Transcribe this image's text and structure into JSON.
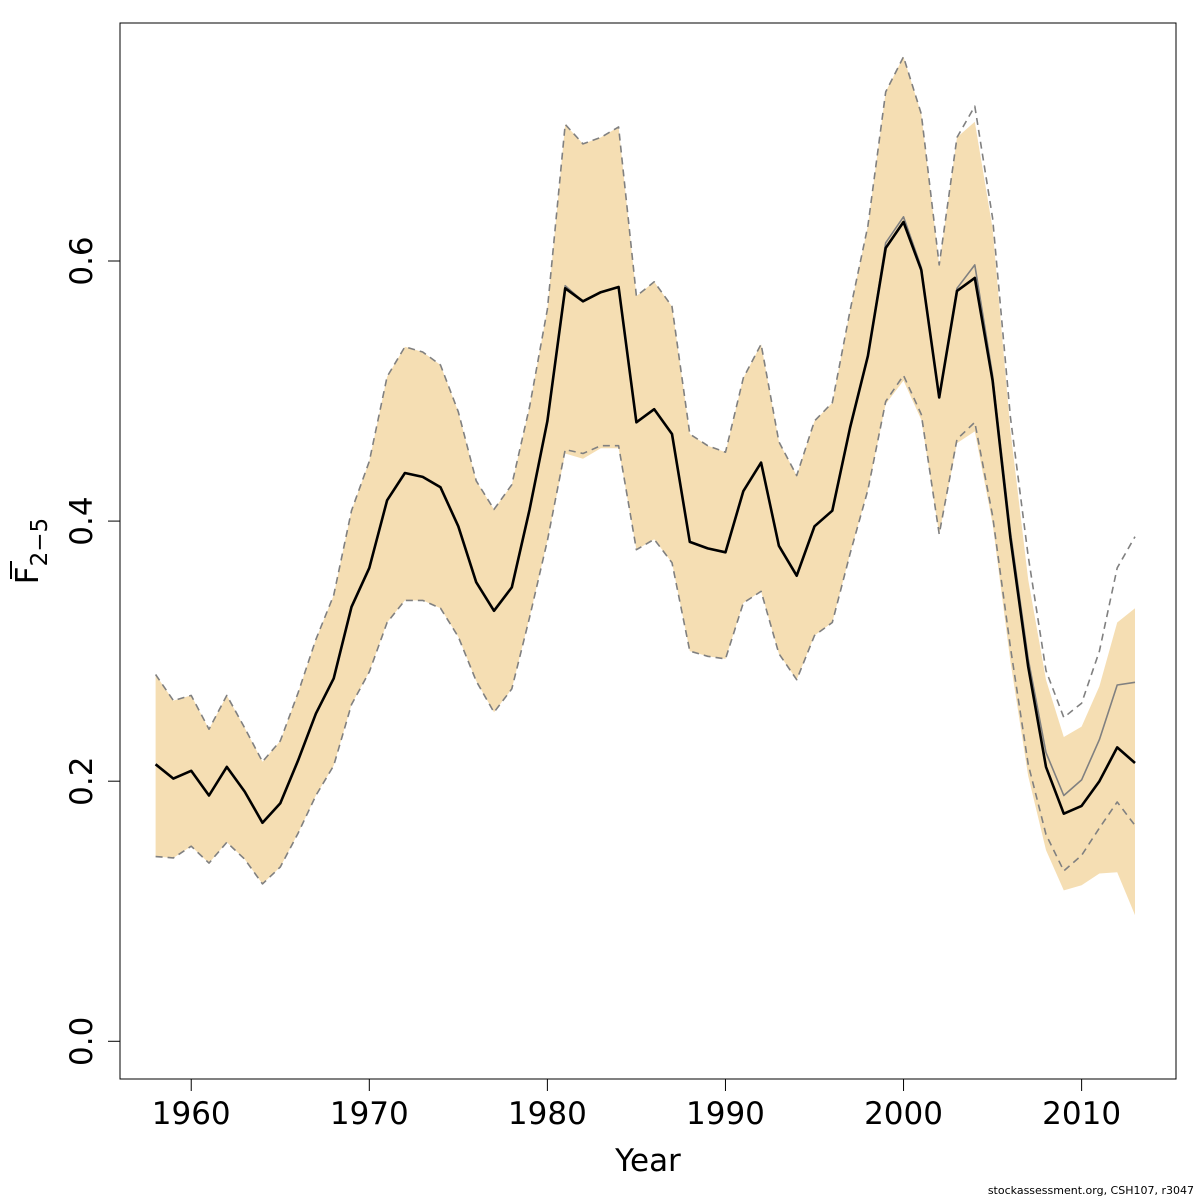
{
  "chart_data": {
    "type": "line",
    "title": "",
    "xlabel": "Year",
    "ylabel_main": "F",
    "ylabel_sub": "2−5",
    "xlim": [
      1956,
      2015.3
    ],
    "ylim": [
      -0.029,
      0.783
    ],
    "x_ticks": [
      1960,
      1970,
      1980,
      1990,
      2000,
      2010
    ],
    "y_ticks": [
      0.0,
      0.2,
      0.4,
      0.6
    ],
    "y_tick_labels": [
      "0.0",
      "0.2",
      "0.4",
      "0.6"
    ],
    "x": [
      1958,
      1959,
      1960,
      1961,
      1962,
      1963,
      1964,
      1965,
      1966,
      1967,
      1968,
      1969,
      1970,
      1971,
      1972,
      1973,
      1974,
      1975,
      1976,
      1977,
      1978,
      1979,
      1980,
      1981,
      1982,
      1983,
      1984,
      1985,
      1986,
      1987,
      1988,
      1989,
      1990,
      1991,
      1992,
      1993,
      1994,
      1995,
      1996,
      1997,
      1998,
      1999,
      2000,
      2001,
      2002,
      2003,
      2004,
      2005,
      2006,
      2007,
      2008,
      2009,
      2010,
      2011,
      2012,
      2013
    ],
    "series": [
      {
        "role": "estimate",
        "color": "#000000",
        "values": [
          0.213,
          0.202,
          0.208,
          0.189,
          0.211,
          0.192,
          0.168,
          0.183,
          0.216,
          0.252,
          0.279,
          0.334,
          0.364,
          0.416,
          0.437,
          0.434,
          0.426,
          0.396,
          0.353,
          0.331,
          0.349,
          0.409,
          0.477,
          0.579,
          0.569,
          0.576,
          0.58,
          0.476,
          0.486,
          0.467,
          0.384,
          0.379,
          0.376,
          0.423,
          0.445,
          0.381,
          0.358,
          0.396,
          0.408,
          0.472,
          0.527,
          0.61,
          0.63,
          0.593,
          0.495,
          0.577,
          0.587,
          0.508,
          0.387,
          0.288,
          0.211,
          0.175,
          0.181,
          0.2,
          0.226,
          0.214
        ]
      },
      {
        "role": "previous-estimate",
        "color": "#808080",
        "values": [
          0.213,
          0.202,
          0.208,
          0.189,
          0.211,
          0.192,
          0.168,
          0.183,
          0.216,
          0.252,
          0.279,
          0.334,
          0.364,
          0.416,
          0.437,
          0.434,
          0.426,
          0.396,
          0.353,
          0.331,
          0.349,
          0.409,
          0.477,
          0.581,
          0.569,
          0.576,
          0.58,
          0.476,
          0.486,
          0.467,
          0.384,
          0.379,
          0.376,
          0.423,
          0.445,
          0.381,
          0.358,
          0.396,
          0.408,
          0.472,
          0.527,
          0.614,
          0.634,
          0.595,
          0.495,
          0.579,
          0.597,
          0.512,
          0.392,
          0.294,
          0.222,
          0.189,
          0.201,
          0.232,
          0.274,
          0.276
        ]
      },
      {
        "role": "previous-upper",
        "color": "#808080",
        "values": [
          0.282,
          0.262,
          0.266,
          0.24,
          0.266,
          0.241,
          0.215,
          0.231,
          0.268,
          0.309,
          0.343,
          0.408,
          0.446,
          0.511,
          0.534,
          0.53,
          0.52,
          0.484,
          0.431,
          0.409,
          0.428,
          0.488,
          0.563,
          0.705,
          0.69,
          0.695,
          0.703,
          0.573,
          0.584,
          0.565,
          0.467,
          0.458,
          0.453,
          0.51,
          0.536,
          0.461,
          0.435,
          0.477,
          0.491,
          0.562,
          0.627,
          0.73,
          0.757,
          0.713,
          0.597,
          0.695,
          0.719,
          0.633,
          0.48,
          0.373,
          0.285,
          0.249,
          0.26,
          0.3,
          0.364,
          0.388
        ]
      },
      {
        "role": "previous-lower",
        "color": "#808080",
        "values": [
          0.142,
          0.141,
          0.15,
          0.137,
          0.153,
          0.14,
          0.121,
          0.134,
          0.16,
          0.189,
          0.212,
          0.259,
          0.284,
          0.322,
          0.339,
          0.339,
          0.333,
          0.311,
          0.277,
          0.253,
          0.271,
          0.326,
          0.385,
          0.455,
          0.452,
          0.458,
          0.458,
          0.378,
          0.386,
          0.368,
          0.3,
          0.296,
          0.294,
          0.337,
          0.346,
          0.298,
          0.278,
          0.312,
          0.322,
          0.375,
          0.424,
          0.492,
          0.512,
          0.482,
          0.39,
          0.463,
          0.476,
          0.404,
          0.303,
          0.213,
          0.159,
          0.131,
          0.143,
          0.164,
          0.184,
          0.166
        ]
      }
    ],
    "band": {
      "role": "confidence-interval",
      "color": "#f5deb3",
      "upper": [
        0.282,
        0.262,
        0.266,
        0.24,
        0.266,
        0.241,
        0.215,
        0.231,
        0.268,
        0.309,
        0.343,
        0.408,
        0.446,
        0.511,
        0.534,
        0.53,
        0.52,
        0.484,
        0.431,
        0.409,
        0.428,
        0.488,
        0.563,
        0.705,
        0.69,
        0.695,
        0.703,
        0.573,
        0.584,
        0.565,
        0.467,
        0.458,
        0.453,
        0.51,
        0.536,
        0.461,
        0.435,
        0.477,
        0.491,
        0.562,
        0.627,
        0.73,
        0.757,
        0.713,
        0.597,
        0.695,
        0.707,
        0.625,
        0.47,
        0.355,
        0.278,
        0.234,
        0.242,
        0.273,
        0.322,
        0.333
      ],
      "lower": [
        0.142,
        0.141,
        0.15,
        0.137,
        0.153,
        0.14,
        0.121,
        0.134,
        0.16,
        0.189,
        0.212,
        0.259,
        0.284,
        0.322,
        0.339,
        0.339,
        0.333,
        0.311,
        0.277,
        0.253,
        0.271,
        0.326,
        0.385,
        0.452,
        0.448,
        0.456,
        0.456,
        0.378,
        0.386,
        0.368,
        0.3,
        0.296,
        0.294,
        0.337,
        0.346,
        0.298,
        0.278,
        0.312,
        0.322,
        0.375,
        0.424,
        0.49,
        0.508,
        0.478,
        0.39,
        0.46,
        0.469,
        0.398,
        0.292,
        0.204,
        0.147,
        0.116,
        0.12,
        0.129,
        0.13,
        0.097
      ]
    },
    "grid": false,
    "legend": "none"
  },
  "credit_text": "stockassessment.org, CSH107, r3047"
}
